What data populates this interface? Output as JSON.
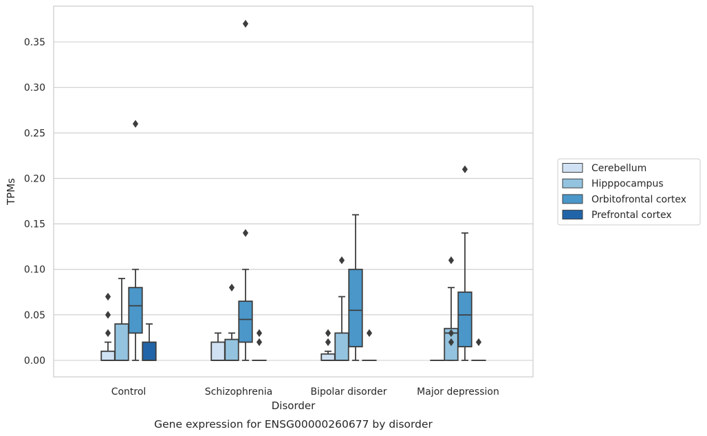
{
  "chart_data": {
    "type": "box",
    "xlabel": "Disorder",
    "ylabel": "TPMs",
    "caption": "Gene expression for ENSG00000260677 by disorder",
    "ylim": [
      -0.018,
      0.388
    ],
    "yticks": [
      0.0,
      0.05,
      0.1,
      0.15,
      0.2,
      0.25,
      0.3,
      0.35
    ],
    "ytick_labels": [
      "0.00",
      "0.05",
      "0.10",
      "0.15",
      "0.20",
      "0.25",
      "0.30",
      "0.35"
    ],
    "grid": "horizontal",
    "legend_position": "right",
    "categories": [
      "Control",
      "Schizophrenia",
      "Bipolar disorder",
      "Major depression"
    ],
    "series": [
      {
        "name": "Cerebellum",
        "color": "#cfe1f2",
        "boxes": [
          {
            "q1": 0.0,
            "median": 0.0,
            "q3": 0.01,
            "whisker_low": 0.0,
            "whisker_high": 0.02,
            "outliers": [
              0.03,
              0.05,
              0.07
            ]
          },
          {
            "q1": 0.0,
            "median": 0.0,
            "q3": 0.02,
            "whisker_low": 0.0,
            "whisker_high": 0.03,
            "outliers": []
          },
          {
            "q1": 0.0,
            "median": 0.0,
            "q3": 0.007,
            "whisker_low": 0.0,
            "whisker_high": 0.01,
            "outliers": [
              0.02,
              0.03
            ]
          },
          {
            "q1": 0.0,
            "median": 0.0,
            "q3": 0.0,
            "whisker_low": 0.0,
            "whisker_high": 0.0,
            "outliers": []
          }
        ]
      },
      {
        "name": "Hipppocampus",
        "color": "#93c3df",
        "boxes": [
          {
            "q1": 0.0,
            "median": 0.0,
            "q3": 0.04,
            "whisker_low": 0.0,
            "whisker_high": 0.09,
            "outliers": []
          },
          {
            "q1": 0.0,
            "median": 0.0,
            "q3": 0.023,
            "whisker_low": 0.0,
            "whisker_high": 0.03,
            "outliers": [
              0.08
            ]
          },
          {
            "q1": 0.0,
            "median": 0.0,
            "q3": 0.03,
            "whisker_low": 0.0,
            "whisker_high": 0.07,
            "outliers": [
              0.11
            ]
          },
          {
            "q1": 0.0,
            "median": 0.03,
            "q3": 0.035,
            "whisker_low": 0.0,
            "whisker_high": 0.08,
            "outliers": [
              0.02,
              0.03,
              0.11
            ]
          }
        ]
      },
      {
        "name": "Orbitofrontal cortex",
        "color": "#4b97c9",
        "boxes": [
          {
            "q1": 0.03,
            "median": 0.06,
            "q3": 0.08,
            "whisker_low": 0.0,
            "whisker_high": 0.1,
            "outliers": [
              0.26
            ]
          },
          {
            "q1": 0.02,
            "median": 0.045,
            "q3": 0.065,
            "whisker_low": 0.0,
            "whisker_high": 0.1,
            "outliers": [
              0.14,
              0.37
            ]
          },
          {
            "q1": 0.015,
            "median": 0.055,
            "q3": 0.1,
            "whisker_low": 0.0,
            "whisker_high": 0.16,
            "outliers": []
          },
          {
            "q1": 0.015,
            "median": 0.05,
            "q3": 0.075,
            "whisker_low": 0.0,
            "whisker_high": 0.14,
            "outliers": [
              0.21
            ]
          }
        ]
      },
      {
        "name": "Prefrontal cortex",
        "color": "#2165a8",
        "boxes": [
          {
            "q1": 0.0,
            "median": 0.0,
            "q3": 0.02,
            "whisker_low": 0.0,
            "whisker_high": 0.04,
            "outliers": []
          },
          {
            "q1": 0.0,
            "median": 0.0,
            "q3": 0.0,
            "whisker_low": 0.0,
            "whisker_high": 0.0,
            "outliers": [
              0.02,
              0.03
            ]
          },
          {
            "q1": 0.0,
            "median": 0.0,
            "q3": 0.0,
            "whisker_low": 0.0,
            "whisker_high": 0.0,
            "outliers": [
              0.03
            ]
          },
          {
            "q1": 0.0,
            "median": 0.0,
            "q3": 0.0,
            "whisker_low": 0.0,
            "whisker_high": 0.0,
            "outliers": [
              0.02
            ]
          }
        ]
      }
    ]
  }
}
